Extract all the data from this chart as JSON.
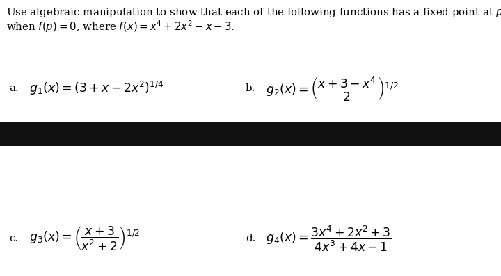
{
  "bg_color": "#ffffff",
  "dark_bar_color": "#111111",
  "text_color": "#000000",
  "line1": "Use algebraic manipulation to show that each of the following functions has a fixed point at $p$ precisely",
  "line2": "when $f(p) = 0$, where $f(x) = x^4 + 2x^2 - x - 3$.",
  "header_fontsize": 10.8,
  "formula_fontsize": 12.5,
  "label_a": "\\textbf{a.}",
  "formula_a": "$g_1(x) = \\left(3 + x - 2x^2\\right)^{1/4}$",
  "label_b": "\\textbf{b.}",
  "formula_b": "$g_2(x) = \\left(\\dfrac{x + 3 - x^4}{2}\\right)^{1/2}$",
  "label_c": "\\textbf{c.}",
  "formula_c": "$g_3(x) = \\left(\\dfrac{x + 3}{x^2 + 2}\\right)^{1/2}$",
  "label_d": "\\textbf{d.}",
  "formula_d": "$g_4(x) = \\dfrac{3x^4 + 2x^2 + 3}{4x^3 + 4x - 1}$"
}
